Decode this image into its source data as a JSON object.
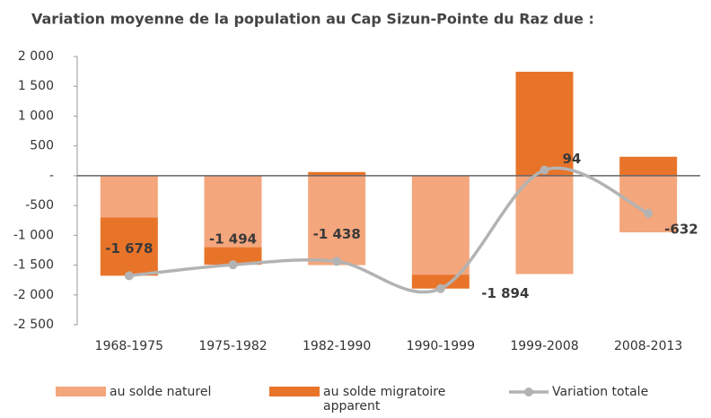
{
  "chart_data": {
    "type": "bar",
    "stacked": true,
    "title": "Variation moyenne de la population au Cap Sizun-Pointe du Raz due :",
    "categories": [
      "1968-1975",
      "1975-1982",
      "1982-1990",
      "1990-1999",
      "1999-2008",
      "2008-2013"
    ],
    "series": [
      {
        "name": "au solde naturel",
        "type": "bar",
        "color": "#f4a67c",
        "values": [
          -700,
          -1200,
          -1500,
          -1660,
          -1650,
          -950
        ]
      },
      {
        "name": "au solde migratoire apparent",
        "type": "bar",
        "color": "#e8742a",
        "values": [
          -978,
          -294,
          62,
          -234,
          1744,
          318
        ]
      },
      {
        "name": "Variation totale",
        "type": "line",
        "color": "#b3b3b3",
        "values": [
          -1678,
          -1494,
          -1438,
          -1894,
          94,
          -632
        ],
        "value_labels": [
          "-1 678",
          "-1 494",
          "-1 438",
          "-1 894",
          "94",
          "-632"
        ]
      }
    ],
    "ylim": [
      -2500,
      2000
    ],
    "yticks": [
      {
        "value": -2500,
        "label": "-2 500"
      },
      {
        "value": -2000,
        "label": "-2 000"
      },
      {
        "value": -1500,
        "label": "-1 500"
      },
      {
        "value": -1000,
        "label": "-1 000"
      },
      -500,
      {
        "value": 0,
        "label": "-"
      },
      500,
      {
        "value": 1000,
        "label": "1 000"
      },
      {
        "value": 1500,
        "label": "1 500"
      },
      {
        "value": 2000,
        "label": "2 000"
      }
    ],
    "legend": "bottom"
  }
}
